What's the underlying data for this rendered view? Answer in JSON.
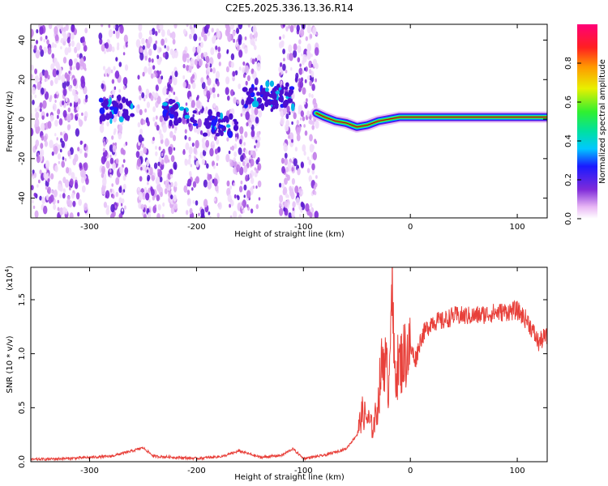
{
  "title": "C2E5.2025.336.13.36.R14",
  "chart_data": [
    {
      "type": "heatmap",
      "name": "spectrogram",
      "xlabel": "Height of straight line (km)",
      "ylabel": "Frequency (Hz)",
      "xlim": [
        -355,
        128
      ],
      "ylim": [
        -50,
        48
      ],
      "xticks": [
        -300,
        -200,
        -100,
        0,
        100
      ],
      "yticks": [
        -40,
        -20,
        0,
        20,
        40
      ],
      "colorbar": {
        "label": "Normalized spectral amplitude",
        "range": [
          0,
          1
        ],
        "ticks": [
          0.0,
          0.2,
          0.4,
          0.6,
          0.8
        ]
      },
      "noise_bands_km": [
        [
          -355,
          -302
        ],
        [
          -290,
          -265
        ],
        [
          -255,
          -218
        ],
        [
          -212,
          -178
        ],
        [
          -172,
          -140
        ],
        [
          -122,
          -87
        ]
      ],
      "signal_track": [
        {
          "x": -88,
          "y": 3
        },
        {
          "x": -80,
          "y": 1
        },
        {
          "x": -70,
          "y": -1
        },
        {
          "x": -60,
          "y": -2
        },
        {
          "x": -50,
          "y": -4
        },
        {
          "x": -40,
          "y": -3
        },
        {
          "x": -30,
          "y": -1
        },
        {
          "x": -20,
          "y": 0
        },
        {
          "x": -10,
          "y": 1
        },
        {
          "x": 0,
          "y": 1
        },
        {
          "x": 20,
          "y": 1
        },
        {
          "x": 50,
          "y": 1
        },
        {
          "x": 80,
          "y": 1
        },
        {
          "x": 110,
          "y": 1
        },
        {
          "x": 128,
          "y": 1
        }
      ],
      "clusters": [
        {
          "x": -275,
          "y": 5
        },
        {
          "x": -215,
          "y": 3
        },
        {
          "x": -178,
          "y": -2
        },
        {
          "x": -140,
          "y": 10
        },
        {
          "x": -125,
          "y": 12
        }
      ]
    },
    {
      "type": "line",
      "name": "snr",
      "xlabel": "Height of straight line (km)",
      "ylabel": "SNR (10 * v/v)",
      "scale_label": "(x10",
      "scale_exponent": "4",
      "xlim": [
        -355,
        128
      ],
      "ylim": [
        0,
        1.8
      ],
      "xticks": [
        -300,
        -200,
        -100,
        0,
        100
      ],
      "yticks": [
        0.0,
        0.5,
        1.0,
        1.5
      ],
      "ytick_labels": [
        "0.0",
        "0.5",
        "1.0",
        "1.5"
      ],
      "series": [
        {
          "name": "SNR",
          "color": "#e8403a",
          "x": [
            -355,
            -320,
            -280,
            -260,
            -250,
            -240,
            -200,
            -175,
            -160,
            -140,
            -120,
            -110,
            -100,
            -80,
            -60,
            -50,
            -45,
            -40,
            -35,
            -30,
            -28,
            -25,
            -20,
            -18,
            -15,
            -10,
            -5,
            0,
            5,
            10,
            20,
            30,
            40,
            60,
            80,
            100,
            110,
            115,
            120,
            125
          ],
          "y": [
            0.02,
            0.03,
            0.05,
            0.1,
            0.13,
            0.05,
            0.03,
            0.05,
            0.1,
            0.04,
            0.06,
            0.12,
            0.03,
            0.06,
            0.12,
            0.25,
            0.45,
            0.4,
            0.3,
            0.55,
            0.8,
            1.0,
            0.7,
            1.85,
            0.85,
            0.9,
            1.0,
            1.05,
            0.95,
            1.15,
            1.3,
            1.3,
            1.35,
            1.35,
            1.38,
            1.4,
            1.3,
            1.2,
            1.1,
            1.15
          ]
        }
      ]
    }
  ]
}
